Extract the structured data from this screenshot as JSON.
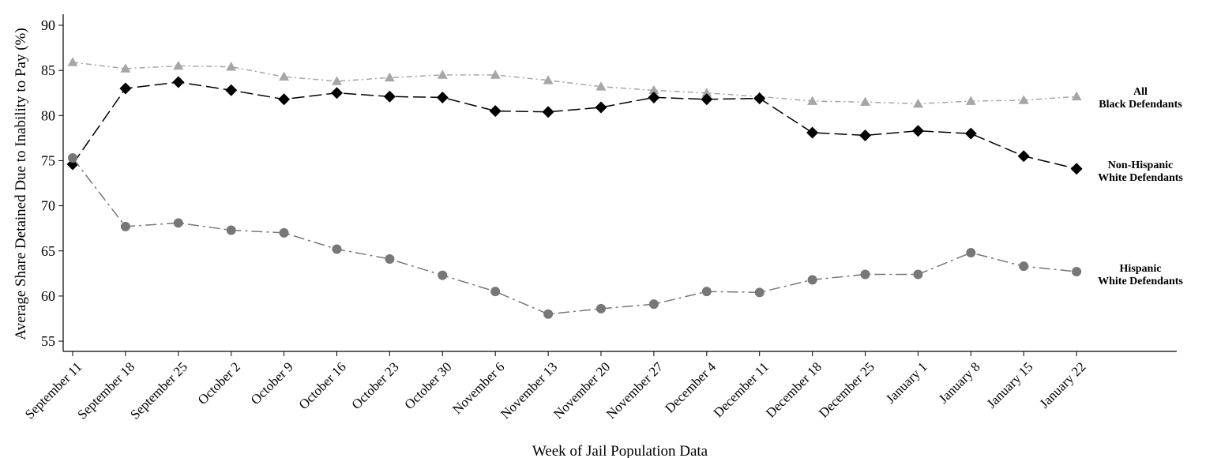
{
  "chart_data": {
    "type": "line",
    "xlabel": "Week of Jail Population Data",
    "ylabel": "Average Share Detained Due to Inability to Pay (%)",
    "ylim": [
      54,
      91
    ],
    "yticks": [
      55,
      60,
      65,
      70,
      75,
      80,
      85,
      90
    ],
    "grid": false,
    "legend": "inline labels at right end of each line",
    "categories": [
      "September 11",
      "September 18",
      "September 25",
      "October 2",
      "October 9",
      "October 16",
      "October 23",
      "October 30",
      "November 6",
      "November 13",
      "November 20",
      "November 27",
      "December 4",
      "December 11",
      "December 18",
      "December 25",
      "January 1",
      "January 8",
      "January 15",
      "January 22"
    ],
    "series": [
      {
        "label_lines": [
          "All",
          "Black Defendants"
        ],
        "color": "#a6a6a6",
        "marker": "triangle",
        "dash": "dash-dot",
        "values": [
          85.9,
          85.2,
          85.5,
          85.4,
          84.3,
          83.8,
          84.2,
          84.5,
          84.5,
          83.9,
          83.2,
          82.8,
          82.5,
          82.1,
          81.6,
          81.5,
          81.3,
          81.6,
          81.7,
          82.1
        ]
      },
      {
        "label_lines": [
          "Non-Hispanic",
          "White Defendants"
        ],
        "color": "#000000",
        "marker": "diamond",
        "dash": "long-dash",
        "values": [
          74.6,
          83.0,
          83.7,
          82.8,
          81.8,
          82.5,
          82.1,
          82.0,
          80.5,
          80.4,
          80.9,
          82.0,
          81.8,
          81.9,
          78.1,
          77.8,
          78.3,
          78.0,
          75.5,
          74.1
        ]
      },
      {
        "label_lines": [
          "Hispanic",
          "White Defendants"
        ],
        "color": "#777777",
        "marker": "circle",
        "dash": "long-dash-dot",
        "values": [
          75.3,
          67.7,
          68.1,
          67.3,
          67.0,
          65.2,
          64.1,
          62.3,
          60.5,
          58.0,
          58.6,
          59.1,
          60.5,
          60.4,
          61.8,
          62.4,
          62.4,
          64.8,
          63.3,
          62.7
        ]
      }
    ]
  }
}
